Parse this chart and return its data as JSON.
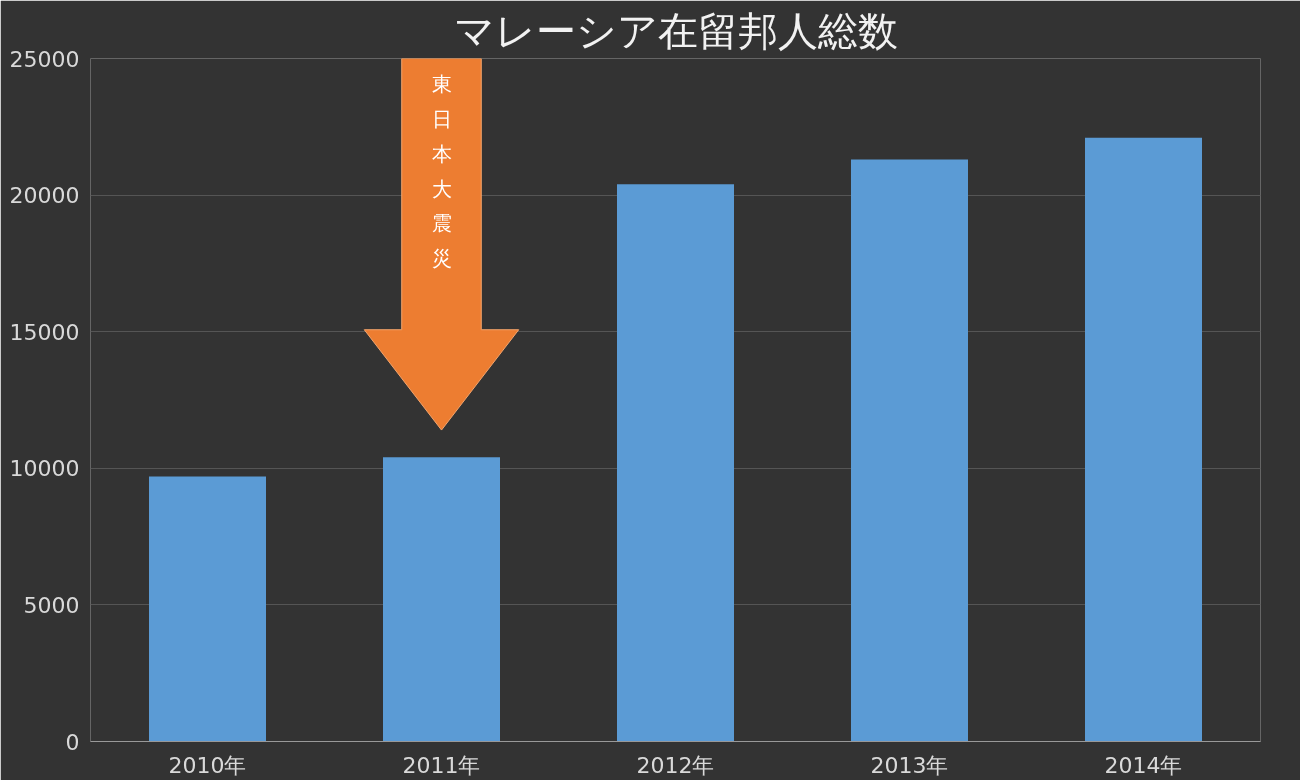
{
  "chart_data": {
    "type": "bar",
    "title": "マレーシア在留邦人総数",
    "categories": [
      "2010年",
      "2011年",
      "2012年",
      "2013年",
      "2014年"
    ],
    "values": [
      9700,
      10400,
      20400,
      21300,
      22100
    ],
    "color": "#5b9bd5",
    "ylim": [
      0,
      25000
    ],
    "yticks": [
      0,
      5000,
      10000,
      15000,
      20000,
      25000
    ],
    "grid": "y",
    "annotations": [
      "東日本大震災"
    ]
  }
}
